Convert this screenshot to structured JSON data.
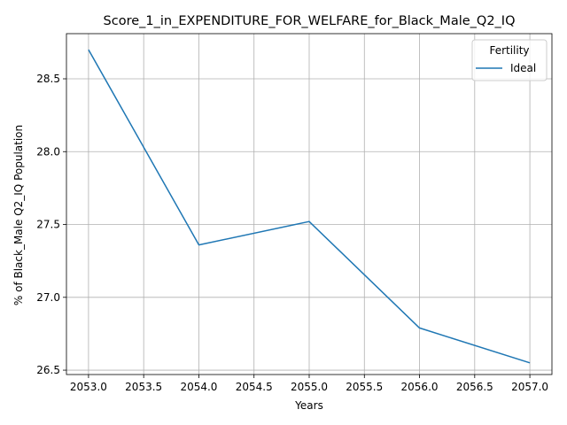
{
  "chart_data": {
    "type": "line",
    "title": "Score_1_in_EXPENDITURE_FOR_WELFARE_for_Black_Male_Q2_IQ",
    "xlabel": "Years",
    "ylabel": "% of Black_Male Q2_IQ Population",
    "xlim": [
      2052.8,
      2057.2
    ],
    "ylim": [
      26.47,
      28.81
    ],
    "x_ticks": [
      2053.0,
      2053.5,
      2054.0,
      2054.5,
      2055.0,
      2055.5,
      2056.0,
      2056.5,
      2057.0
    ],
    "x_tick_labels": [
      "2053.0",
      "2053.5",
      "2054.0",
      "2054.5",
      "2055.0",
      "2055.5",
      "2056.0",
      "2056.5",
      "2057.0"
    ],
    "y_ticks": [
      26.5,
      27.0,
      27.5,
      28.0,
      28.5
    ],
    "y_tick_labels": [
      "26.5",
      "27.0",
      "27.5",
      "28.0",
      "28.5"
    ],
    "grid": true,
    "legend": {
      "title": "Fertility",
      "position": "top-right"
    },
    "series": [
      {
        "name": "Ideal",
        "color": "#1f77b4",
        "x": [
          2053,
          2054,
          2055,
          2056,
          2057
        ],
        "y": [
          28.7,
          27.36,
          27.52,
          26.79,
          26.55
        ]
      }
    ]
  }
}
